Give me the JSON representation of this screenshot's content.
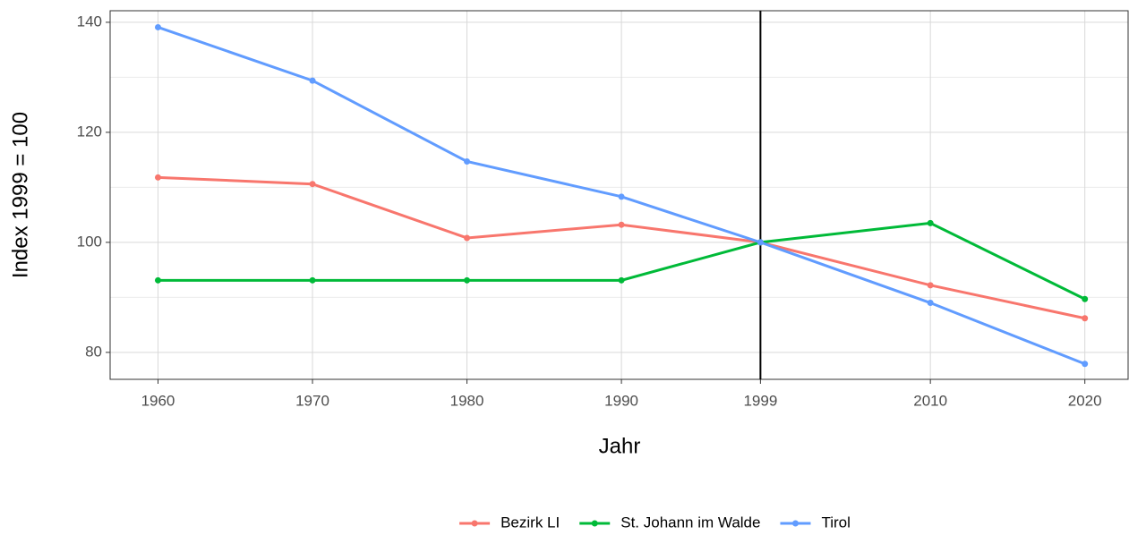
{
  "chart_data": {
    "type": "line",
    "x_label": "Jahr",
    "y_label": "Index 1999 = 100",
    "x": [
      1960,
      1970,
      1980,
      1990,
      1999,
      2010,
      2020
    ],
    "series": [
      {
        "name": "Bezirk LI",
        "color": "#F8766D",
        "values": [
          111.8,
          110.6,
          100.8,
          103.2,
          100,
          92.2,
          86.2
        ]
      },
      {
        "name": "St. Johann im Walde",
        "color": "#00BA38",
        "values": [
          93.1,
          93.1,
          93.1,
          93.1,
          100,
          103.5,
          89.7
        ]
      },
      {
        "name": "Tirol",
        "color": "#619CFF",
        "values": [
          139.1,
          129.4,
          114.7,
          108.3,
          100,
          89.0,
          77.9
        ]
      }
    ],
    "xlim": [
      1956.9,
      2022.8
    ],
    "xticks": [
      1960,
      1970,
      1980,
      1990,
      1999,
      2010,
      2020
    ],
    "ylim": [
      75.1,
      142.1
    ],
    "yticks": [
      80,
      100,
      120,
      140
    ],
    "yminor": [
      90,
      110,
      130
    ],
    "vline": 1999,
    "grid": true,
    "legend": "bottom"
  }
}
